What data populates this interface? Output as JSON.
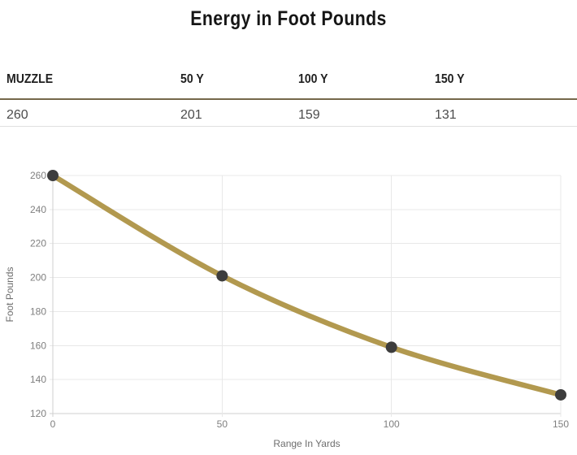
{
  "page": {
    "title": "Energy in Foot Pounds"
  },
  "table": {
    "columns": [
      {
        "header": "MUZZLE",
        "value": "260"
      },
      {
        "header": "50 Y",
        "value": "201"
      },
      {
        "header": "100 Y",
        "value": "159"
      },
      {
        "header": "150 Y",
        "value": "131"
      }
    ]
  },
  "chart_data": {
    "type": "line",
    "title": "Energy in Foot Pounds",
    "x": [
      0,
      50,
      100,
      150
    ],
    "series": [
      {
        "name": "Foot Pounds",
        "values": [
          260,
          201,
          159,
          131
        ]
      }
    ],
    "xlabel": "Range In Yards",
    "ylabel": "Foot Pounds",
    "xlim": [
      0,
      150
    ],
    "ylim": [
      120,
      260
    ],
    "x_ticks": [
      0,
      50,
      100,
      150
    ],
    "y_ticks": [
      120,
      140,
      160,
      180,
      200,
      220,
      240,
      260
    ],
    "grid": true,
    "legend": "none",
    "smooth": true
  },
  "colors": {
    "line": "#b2994f",
    "point": "#3d3d3d",
    "grid": "#e8e8e8",
    "axis": "#cfcfcf",
    "tick_label": "#7f7f7f",
    "axis_title": "#6e6e6e",
    "header_rule": "#75684a",
    "row_rule": "#e0e0e0",
    "title_text": "#161616",
    "header_text": "#1f1f1f",
    "value_text": "#4c4c4c"
  }
}
